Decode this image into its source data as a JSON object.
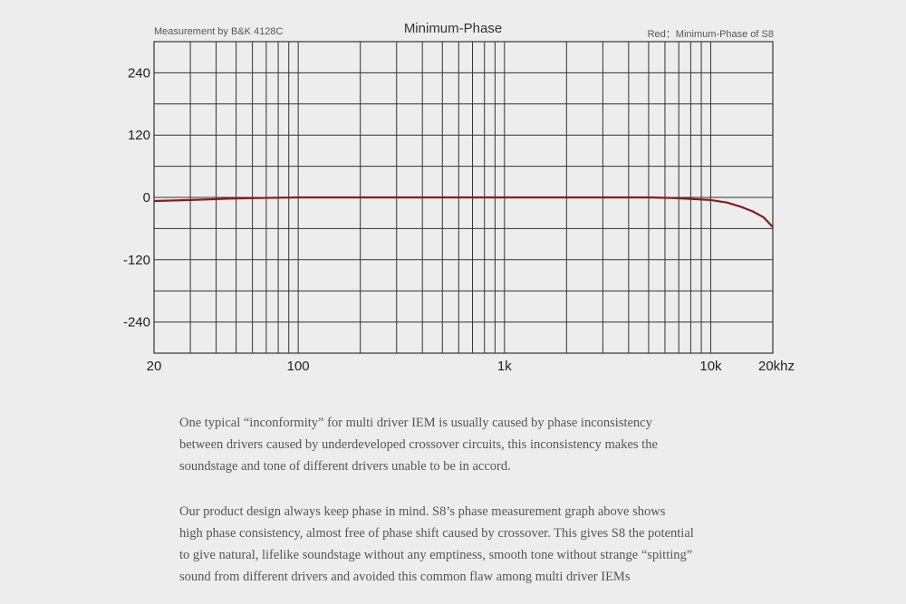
{
  "header": {
    "left_note": "Measurement by B&K 4128C",
    "title": "Minimum-Phase",
    "right_note": "Red：Minimum-Phase of S8"
  },
  "chart_data": {
    "type": "line",
    "title": "Minimum-Phase",
    "xscale": "log",
    "xlim": [
      20,
      20000
    ],
    "ylim": [
      -300,
      300
    ],
    "x_tick_values": [
      20,
      100,
      1000,
      10000,
      20000
    ],
    "x_tick_labels": [
      "20",
      "100",
      "1k",
      "10k",
      "20khz"
    ],
    "y_tick_values": [
      240,
      120,
      0,
      -120,
      -240
    ],
    "y_tick_labels": [
      "240",
      "120",
      "0",
      "-120",
      "-240"
    ],
    "grid": true,
    "series": [
      {
        "name": "Minimum-Phase of S8",
        "color": "#8b1a1a",
        "x": [
          20,
          30,
          50,
          80,
          100,
          200,
          500,
          1000,
          2000,
          5000,
          6500,
          8000,
          10000,
          12000,
          14000,
          16000,
          18000,
          20000
        ],
        "y": [
          -7,
          -5,
          -2,
          -0.5,
          0,
          0,
          0,
          0,
          0,
          0,
          -1,
          -3,
          -5,
          -10,
          -18,
          -27,
          -38,
          -57
        ]
      }
    ]
  },
  "paragraphs": [
    {
      "lines": [
        "One typical “inconformity” for multi driver IEM is usually caused by phase inconsistency",
        "between drivers caused by underdeveloped crossover circuits, this inconsistency makes the",
        "soundstage and tone of different drivers unable to be in accord."
      ]
    },
    {
      "lines": [
        "Our product design always keep phase in mind. S8’s phase measurement graph above shows",
        "high phase consistency, almost free of phase shift caused by crossover. This gives S8 the potential",
        "to give natural, lifelike soundstage without any emptiness, smooth tone without strange “spitting”",
        "sound from different drivers and avoided this common flaw among multi driver IEMs"
      ]
    }
  ]
}
